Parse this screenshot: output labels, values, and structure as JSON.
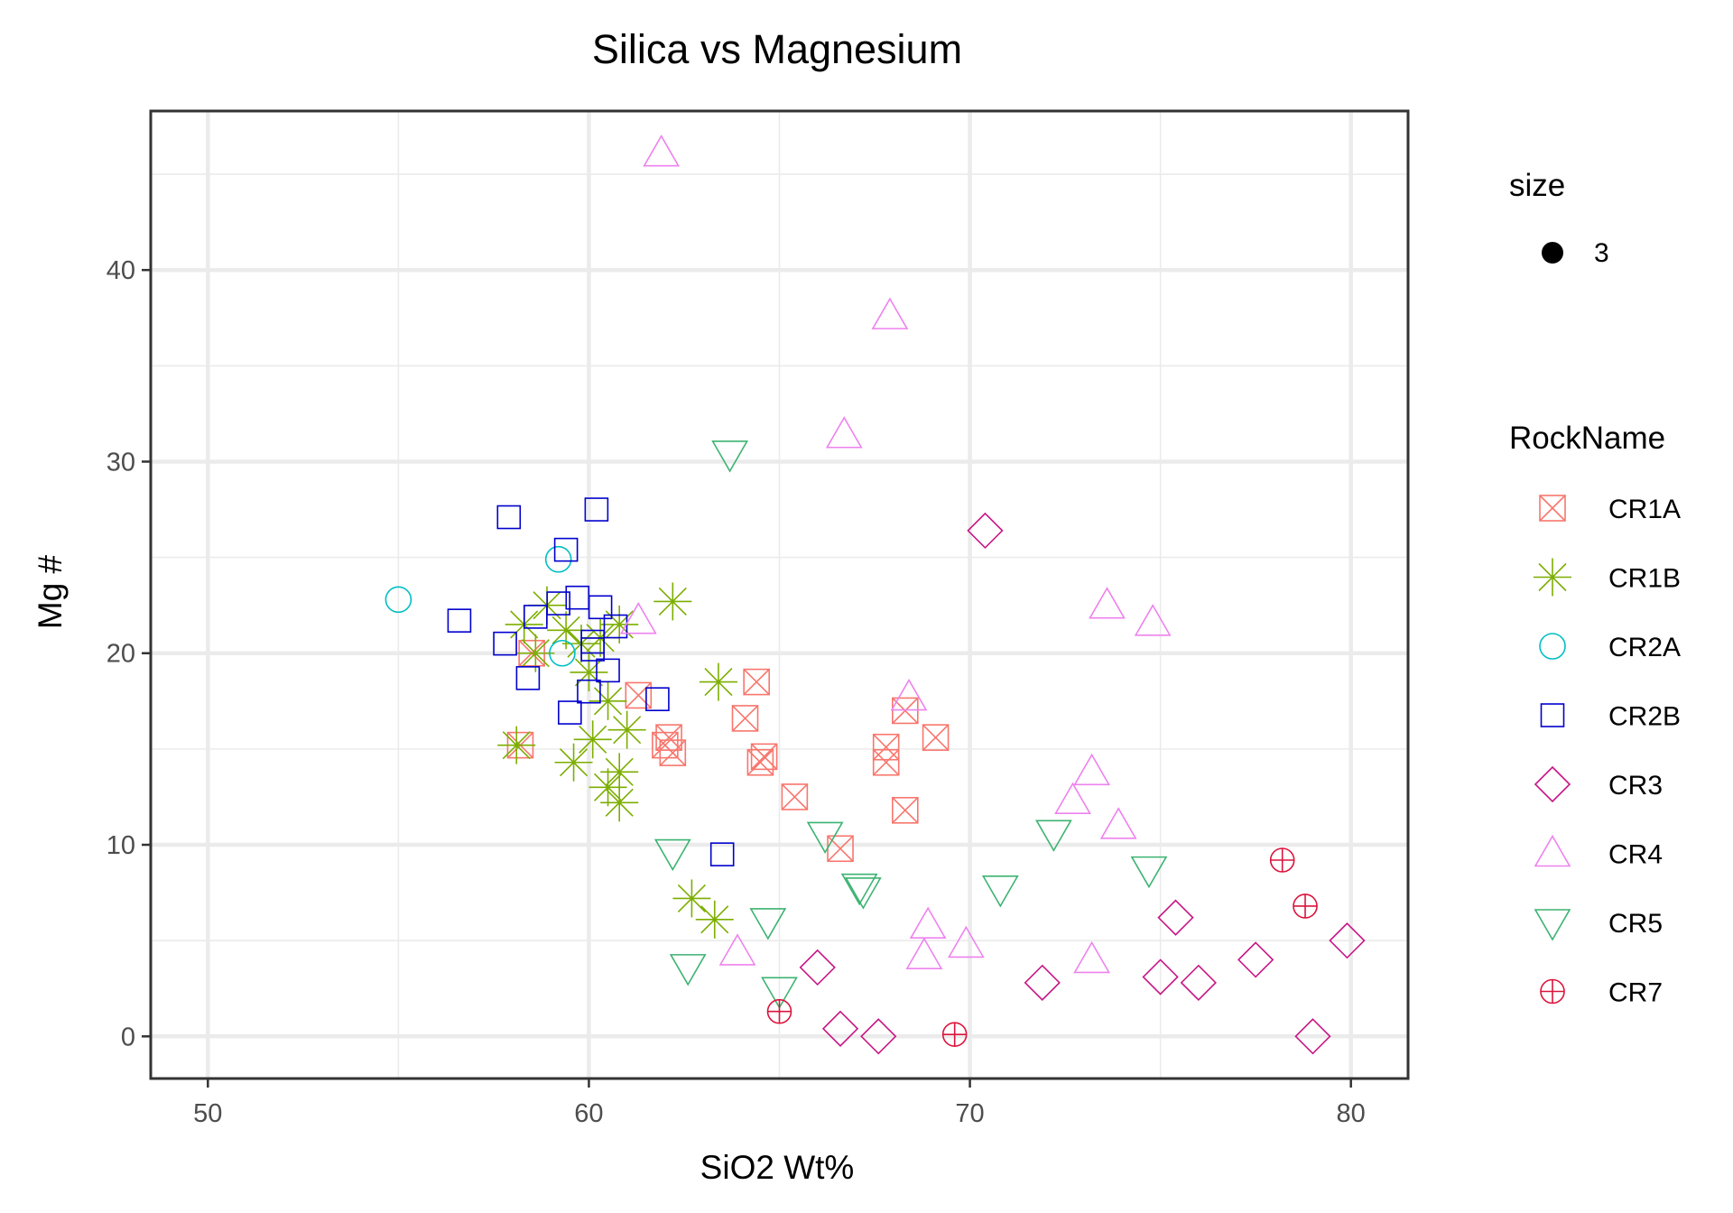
{
  "chart_data": {
    "type": "scatter",
    "title": "Silica vs Magnesium",
    "xlabel": "SiO2 Wt%",
    "ylabel": "Mg #",
    "xlim": [
      48.5,
      81.5
    ],
    "ylim": [
      -2.2,
      48.3
    ],
    "xticks": [
      50,
      60,
      70,
      80
    ],
    "yticks": [
      0,
      10,
      20,
      30,
      40
    ],
    "grid": true,
    "legend_position": "right",
    "size_legend": {
      "title": "size",
      "label": "3"
    },
    "legend_title": "RockName",
    "series": [
      {
        "name": "CR1A",
        "shape": "boxcross",
        "color": "#F8766D",
        "points": [
          [
            58.2,
            15.2
          ],
          [
            61.3,
            17.8
          ],
          [
            62.1,
            15.6
          ],
          [
            62.0,
            15.2
          ],
          [
            62.2,
            14.8
          ],
          [
            64.1,
            16.6
          ],
          [
            64.4,
            18.5
          ],
          [
            64.5,
            14.3
          ],
          [
            64.6,
            14.6
          ],
          [
            65.4,
            12.5
          ],
          [
            66.6,
            9.8
          ],
          [
            67.8,
            15.1
          ],
          [
            67.8,
            14.3
          ],
          [
            68.3,
            17.0
          ],
          [
            68.3,
            11.8
          ],
          [
            69.1,
            15.6
          ],
          [
            58.5,
            20.0
          ]
        ]
      },
      {
        "name": "CR1B",
        "shape": "asterisk",
        "color": "#7CAE00",
        "points": [
          [
            58.1,
            15.2
          ],
          [
            58.3,
            21.5
          ],
          [
            58.6,
            20.0
          ],
          [
            58.9,
            22.5
          ],
          [
            59.4,
            21.2
          ],
          [
            59.6,
            14.3
          ],
          [
            59.8,
            20.5
          ],
          [
            60.0,
            19.0
          ],
          [
            60.1,
            15.5
          ],
          [
            60.3,
            20.8
          ],
          [
            60.5,
            17.5
          ],
          [
            60.5,
            13.0
          ],
          [
            60.8,
            13.8
          ],
          [
            60.8,
            12.2
          ],
          [
            61.0,
            16.0
          ],
          [
            60.8,
            21.5
          ],
          [
            62.2,
            22.7
          ],
          [
            63.4,
            18.5
          ],
          [
            62.7,
            7.2
          ],
          [
            63.3,
            6.1
          ]
        ]
      },
      {
        "name": "CR2A",
        "shape": "circle",
        "color": "#00BFC4",
        "points": [
          [
            55.0,
            22.8
          ],
          [
            59.2,
            24.9
          ],
          [
            59.3,
            20.0
          ]
        ]
      },
      {
        "name": "CR2B",
        "shape": "square",
        "color": "#0000CD",
        "points": [
          [
            56.6,
            21.7
          ],
          [
            57.8,
            20.5
          ],
          [
            57.9,
            27.1
          ],
          [
            58.4,
            18.7
          ],
          [
            58.6,
            21.9
          ],
          [
            59.2,
            22.6
          ],
          [
            59.4,
            25.4
          ],
          [
            59.5,
            16.9
          ],
          [
            59.7,
            22.9
          ],
          [
            60.0,
            18.0
          ],
          [
            60.1,
            20.2
          ],
          [
            60.1,
            20.6
          ],
          [
            60.2,
            27.5
          ],
          [
            60.3,
            22.4
          ],
          [
            60.5,
            19.1
          ],
          [
            60.7,
            21.4
          ],
          [
            61.8,
            17.6
          ],
          [
            63.5,
            9.5
          ]
        ]
      },
      {
        "name": "CR3",
        "shape": "diamond",
        "color": "#C71585",
        "points": [
          [
            66.0,
            3.6
          ],
          [
            66.6,
            0.4
          ],
          [
            67.6,
            0.0
          ],
          [
            70.4,
            26.4
          ],
          [
            71.9,
            2.8
          ],
          [
            75.0,
            3.1
          ],
          [
            75.4,
            6.2
          ],
          [
            76.0,
            2.8
          ],
          [
            77.5,
            4.0
          ],
          [
            79.0,
            0.0
          ],
          [
            79.9,
            5.0
          ]
        ]
      },
      {
        "name": "CR4",
        "shape": "triangle",
        "color": "#EE82EE",
        "points": [
          [
            61.9,
            46.1
          ],
          [
            67.9,
            37.6
          ],
          [
            66.7,
            31.4
          ],
          [
            61.3,
            21.7
          ],
          [
            68.4,
            17.7
          ],
          [
            63.9,
            4.4
          ],
          [
            68.9,
            5.8
          ],
          [
            68.8,
            4.2
          ],
          [
            69.9,
            4.8
          ],
          [
            72.7,
            12.3
          ],
          [
            73.2,
            13.8
          ],
          [
            73.2,
            4.0
          ],
          [
            73.6,
            22.5
          ],
          [
            73.9,
            11.0
          ],
          [
            74.8,
            21.6
          ]
        ]
      },
      {
        "name": "CR5",
        "shape": "triangle-down",
        "color": "#3CB371",
        "points": [
          [
            63.7,
            30.4
          ],
          [
            62.2,
            9.6
          ],
          [
            62.6,
            3.6
          ],
          [
            64.7,
            6.0
          ],
          [
            65.0,
            2.4
          ],
          [
            66.2,
            10.5
          ],
          [
            67.1,
            7.8
          ],
          [
            67.2,
            7.6
          ],
          [
            70.8,
            7.7
          ],
          [
            72.2,
            10.6
          ],
          [
            74.7,
            8.7
          ]
        ]
      },
      {
        "name": "CR7",
        "shape": "circleplus",
        "color": "#DC143C",
        "points": [
          [
            65.0,
            1.3
          ],
          [
            69.6,
            0.1
          ],
          [
            78.2,
            9.2
          ],
          [
            78.8,
            6.8
          ]
        ]
      }
    ]
  }
}
